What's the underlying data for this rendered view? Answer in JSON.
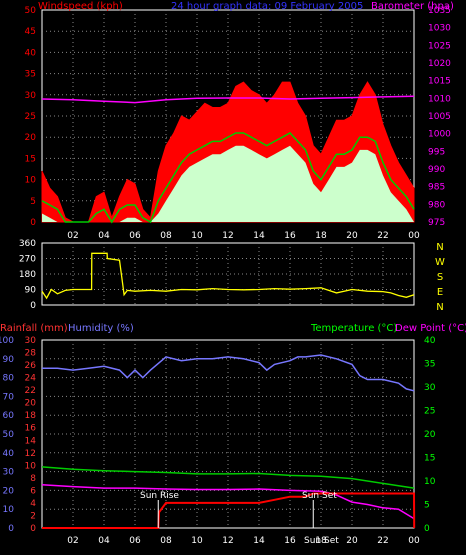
{
  "chart_data": [
    {
      "id": "wind_baro",
      "type": "area",
      "title": "24 hour graph data: 09 February 2005",
      "ylabel_left": "Windspeed (kph)",
      "ylabel_right": "Barometer (hpa)",
      "left_ticks": [
        "50",
        "45",
        "40",
        "35",
        "30",
        "25",
        "20",
        "15",
        "10",
        "5",
        "0"
      ],
      "right_ticks": [
        "1035",
        "1030",
        "1025",
        "1020",
        "1015",
        "1010",
        "1005",
        "1000",
        "995",
        "990",
        "985",
        "980",
        "975"
      ],
      "x_ticks": [
        "02",
        "04",
        "06",
        "08",
        "10",
        "12",
        "14",
        "16",
        "18",
        "20",
        "22",
        "00"
      ],
      "ylim": [
        0,
        50
      ],
      "ylim_right": [
        975,
        1035
      ],
      "colors": {
        "gust": "#ff0000",
        "average": "#00cc00",
        "wind": "#ccffcc",
        "barometer": "#ff00ff"
      },
      "series": [
        {
          "name": "gust",
          "x": [
            0,
            0.5,
            1,
            1.5,
            2,
            2.5,
            3,
            3.5,
            4,
            4.5,
            5,
            5.5,
            6,
            6.5,
            7,
            7.5,
            8,
            8.5,
            9,
            9.5,
            10,
            10.5,
            11,
            11.5,
            12,
            12.5,
            13,
            13.5,
            14,
            14.5,
            15,
            15.5,
            16,
            16.5,
            17,
            17.5,
            18,
            18.5,
            19,
            19.5,
            20,
            20.5,
            21,
            21.5,
            22,
            22.5,
            23,
            23.5,
            24
          ],
          "values": [
            12,
            8,
            6,
            1,
            0,
            0,
            0,
            6,
            7,
            1,
            6,
            10,
            9,
            3,
            1,
            12,
            18,
            21,
            25,
            24,
            26,
            28,
            27,
            27,
            28,
            32,
            33,
            31,
            30,
            28,
            30,
            33,
            33,
            28,
            25,
            18,
            16,
            20,
            24,
            24,
            25,
            30,
            33,
            30,
            23,
            18,
            14,
            11,
            8
          ]
        },
        {
          "name": "average",
          "x": [
            0,
            0.5,
            1,
            1.5,
            2,
            2.5,
            3,
            3.5,
            4,
            4.5,
            5,
            5.5,
            6,
            6.5,
            7,
            7.5,
            8,
            8.5,
            9,
            9.5,
            10,
            10.5,
            11,
            11.5,
            12,
            12.5,
            13,
            13.5,
            14,
            14.5,
            15,
            15.5,
            16,
            16.5,
            17,
            17.5,
            18,
            18.5,
            19,
            19.5,
            20,
            20.5,
            21,
            21.5,
            22,
            22.5,
            23,
            23.5,
            24
          ],
          "values": [
            5,
            4,
            3,
            0,
            0,
            0,
            0,
            2,
            3,
            0,
            3,
            4,
            4,
            1,
            0,
            5,
            8,
            11,
            14,
            16,
            17,
            18,
            19,
            19,
            20,
            21,
            21,
            20,
            19,
            18,
            19,
            20,
            21,
            19,
            17,
            12,
            10,
            13,
            16,
            16,
            17,
            20,
            20,
            19,
            14,
            10,
            8,
            6,
            3
          ]
        },
        {
          "name": "barometer",
          "x": [
            0,
            2,
            4,
            6,
            8,
            10,
            12,
            14,
            16,
            18,
            20,
            22,
            24
          ],
          "values": [
            1009.8,
            1009.6,
            1009.2,
            1008.8,
            1009.6,
            1010.0,
            1010.1,
            1010.1,
            1009.8,
            1010.0,
            1010.2,
            1010.4,
            1010.6
          ]
        }
      ]
    },
    {
      "id": "direction",
      "type": "line",
      "left_ticks": [
        "360",
        "270",
        "180",
        "90",
        "0"
      ],
      "right_labels": [
        "N",
        "W",
        "S",
        "E",
        "N"
      ],
      "x_ticks": [
        "02",
        "04",
        "06",
        "08",
        "10",
        "12",
        "14",
        "16",
        "18",
        "20",
        "22",
        "00"
      ],
      "ylim": [
        0,
        360
      ],
      "colors": {
        "direction": "#ffff00"
      },
      "series": [
        {
          "name": "direction",
          "x": [
            0,
            0.3,
            0.6,
            1,
            1.5,
            2,
            2.5,
            3,
            3.2,
            3.21,
            4,
            4.2,
            4.21,
            5,
            5.3,
            5.5,
            6,
            7,
            8,
            9,
            10,
            11,
            12,
            13,
            14,
            15,
            16,
            17,
            18,
            18.5,
            19,
            20,
            21,
            22,
            22.5,
            23,
            23.5,
            24
          ],
          "values": [
            80,
            40,
            90,
            65,
            85,
            90,
            90,
            90,
            90,
            300,
            300,
            300,
            270,
            260,
            60,
            85,
            80,
            85,
            80,
            90,
            88,
            95,
            90,
            88,
            90,
            95,
            92,
            95,
            100,
            85,
            70,
            90,
            80,
            78,
            70,
            55,
            45,
            60
          ]
        }
      ]
    },
    {
      "id": "rain_hum_temp",
      "type": "line",
      "ylabel_rain": "Rainfall (mm)",
      "ylabel_humidity": "Humidity (%)",
      "ylabel_temp": "Temperature (°C)",
      "ylabel_dew": "Dew Point (°C)",
      "humidity_ticks": [
        "100",
        "90",
        "80",
        "70",
        "60",
        "50",
        "40",
        "30",
        "20",
        "10",
        "0"
      ],
      "rain_ticks": [
        "30",
        "28",
        "26",
        "24",
        "22",
        "20",
        "18",
        "16",
        "14",
        "12",
        "10",
        "8",
        "6",
        "4",
        "2",
        "0"
      ],
      "temp_ticks": [
        "40",
        "35",
        "30",
        "25",
        "20",
        "15",
        "10",
        "5",
        "0"
      ],
      "x_ticks": [
        "02",
        "04",
        "06",
        "08",
        "10",
        "12",
        "14",
        "16",
        "18",
        "20",
        "22",
        "00"
      ],
      "annotations": [
        "Sun Rise",
        "Sun Set",
        "Sun Set"
      ],
      "ylim_humidity": [
        0,
        100
      ],
      "ylim_rain": [
        0,
        30
      ],
      "ylim_temp": [
        0,
        40
      ],
      "colors": {
        "humidity": "#7777ff",
        "temperature": "#00cc00",
        "dewpoint": "#ff00ff",
        "rainfall": "#ff0000",
        "rain_axis": "#ff3333",
        "temp_axis": "#00ff00"
      },
      "series": [
        {
          "name": "humidity",
          "x": [
            0,
            1,
            2,
            3,
            4,
            5,
            5.5,
            6,
            6.5,
            7,
            8,
            9,
            10,
            11,
            12,
            13,
            14,
            14.5,
            15,
            16,
            16.5,
            17,
            18,
            19,
            20,
            20.5,
            21,
            22,
            23,
            23.5,
            24
          ],
          "values": [
            85,
            85,
            84,
            85,
            86,
            84,
            80,
            84,
            80,
            84,
            91,
            89,
            90,
            90,
            91,
            90,
            88,
            84,
            87,
            89,
            91,
            91,
            92,
            90,
            87,
            81,
            79,
            79,
            77,
            74,
            73
          ]
        },
        {
          "name": "temperature",
          "x": [
            0,
            2,
            4,
            6,
            8,
            10,
            12,
            14,
            16,
            18,
            20,
            22,
            24
          ],
          "values": [
            13,
            12.5,
            12.2,
            12,
            11.8,
            11.5,
            11.5,
            11.6,
            11.2,
            11,
            10.5,
            9.5,
            8.5
          ]
        },
        {
          "name": "dewpoint",
          "x": [
            0,
            2,
            4,
            6,
            8,
            10,
            12,
            14,
            16,
            18,
            18.5,
            19,
            20,
            21,
            22,
            23,
            24
          ],
          "values": [
            9.2,
            8.8,
            8.5,
            8.5,
            8.3,
            8.2,
            8.2,
            8.3,
            8,
            7.8,
            7.5,
            7,
            5.5,
            5,
            4.3,
            4,
            2
          ]
        },
        {
          "name": "rainfall",
          "x": [
            0,
            7.5,
            7.55,
            8,
            10,
            12,
            14,
            15,
            16,
            17,
            17.5,
            18,
            20,
            24,
            24.01
          ],
          "values": [
            0,
            0,
            2.5,
            4,
            4,
            4,
            4,
            4.5,
            5,
            5,
            5.5,
            5.5,
            5.5,
            5.5,
            0
          ]
        }
      ]
    }
  ]
}
